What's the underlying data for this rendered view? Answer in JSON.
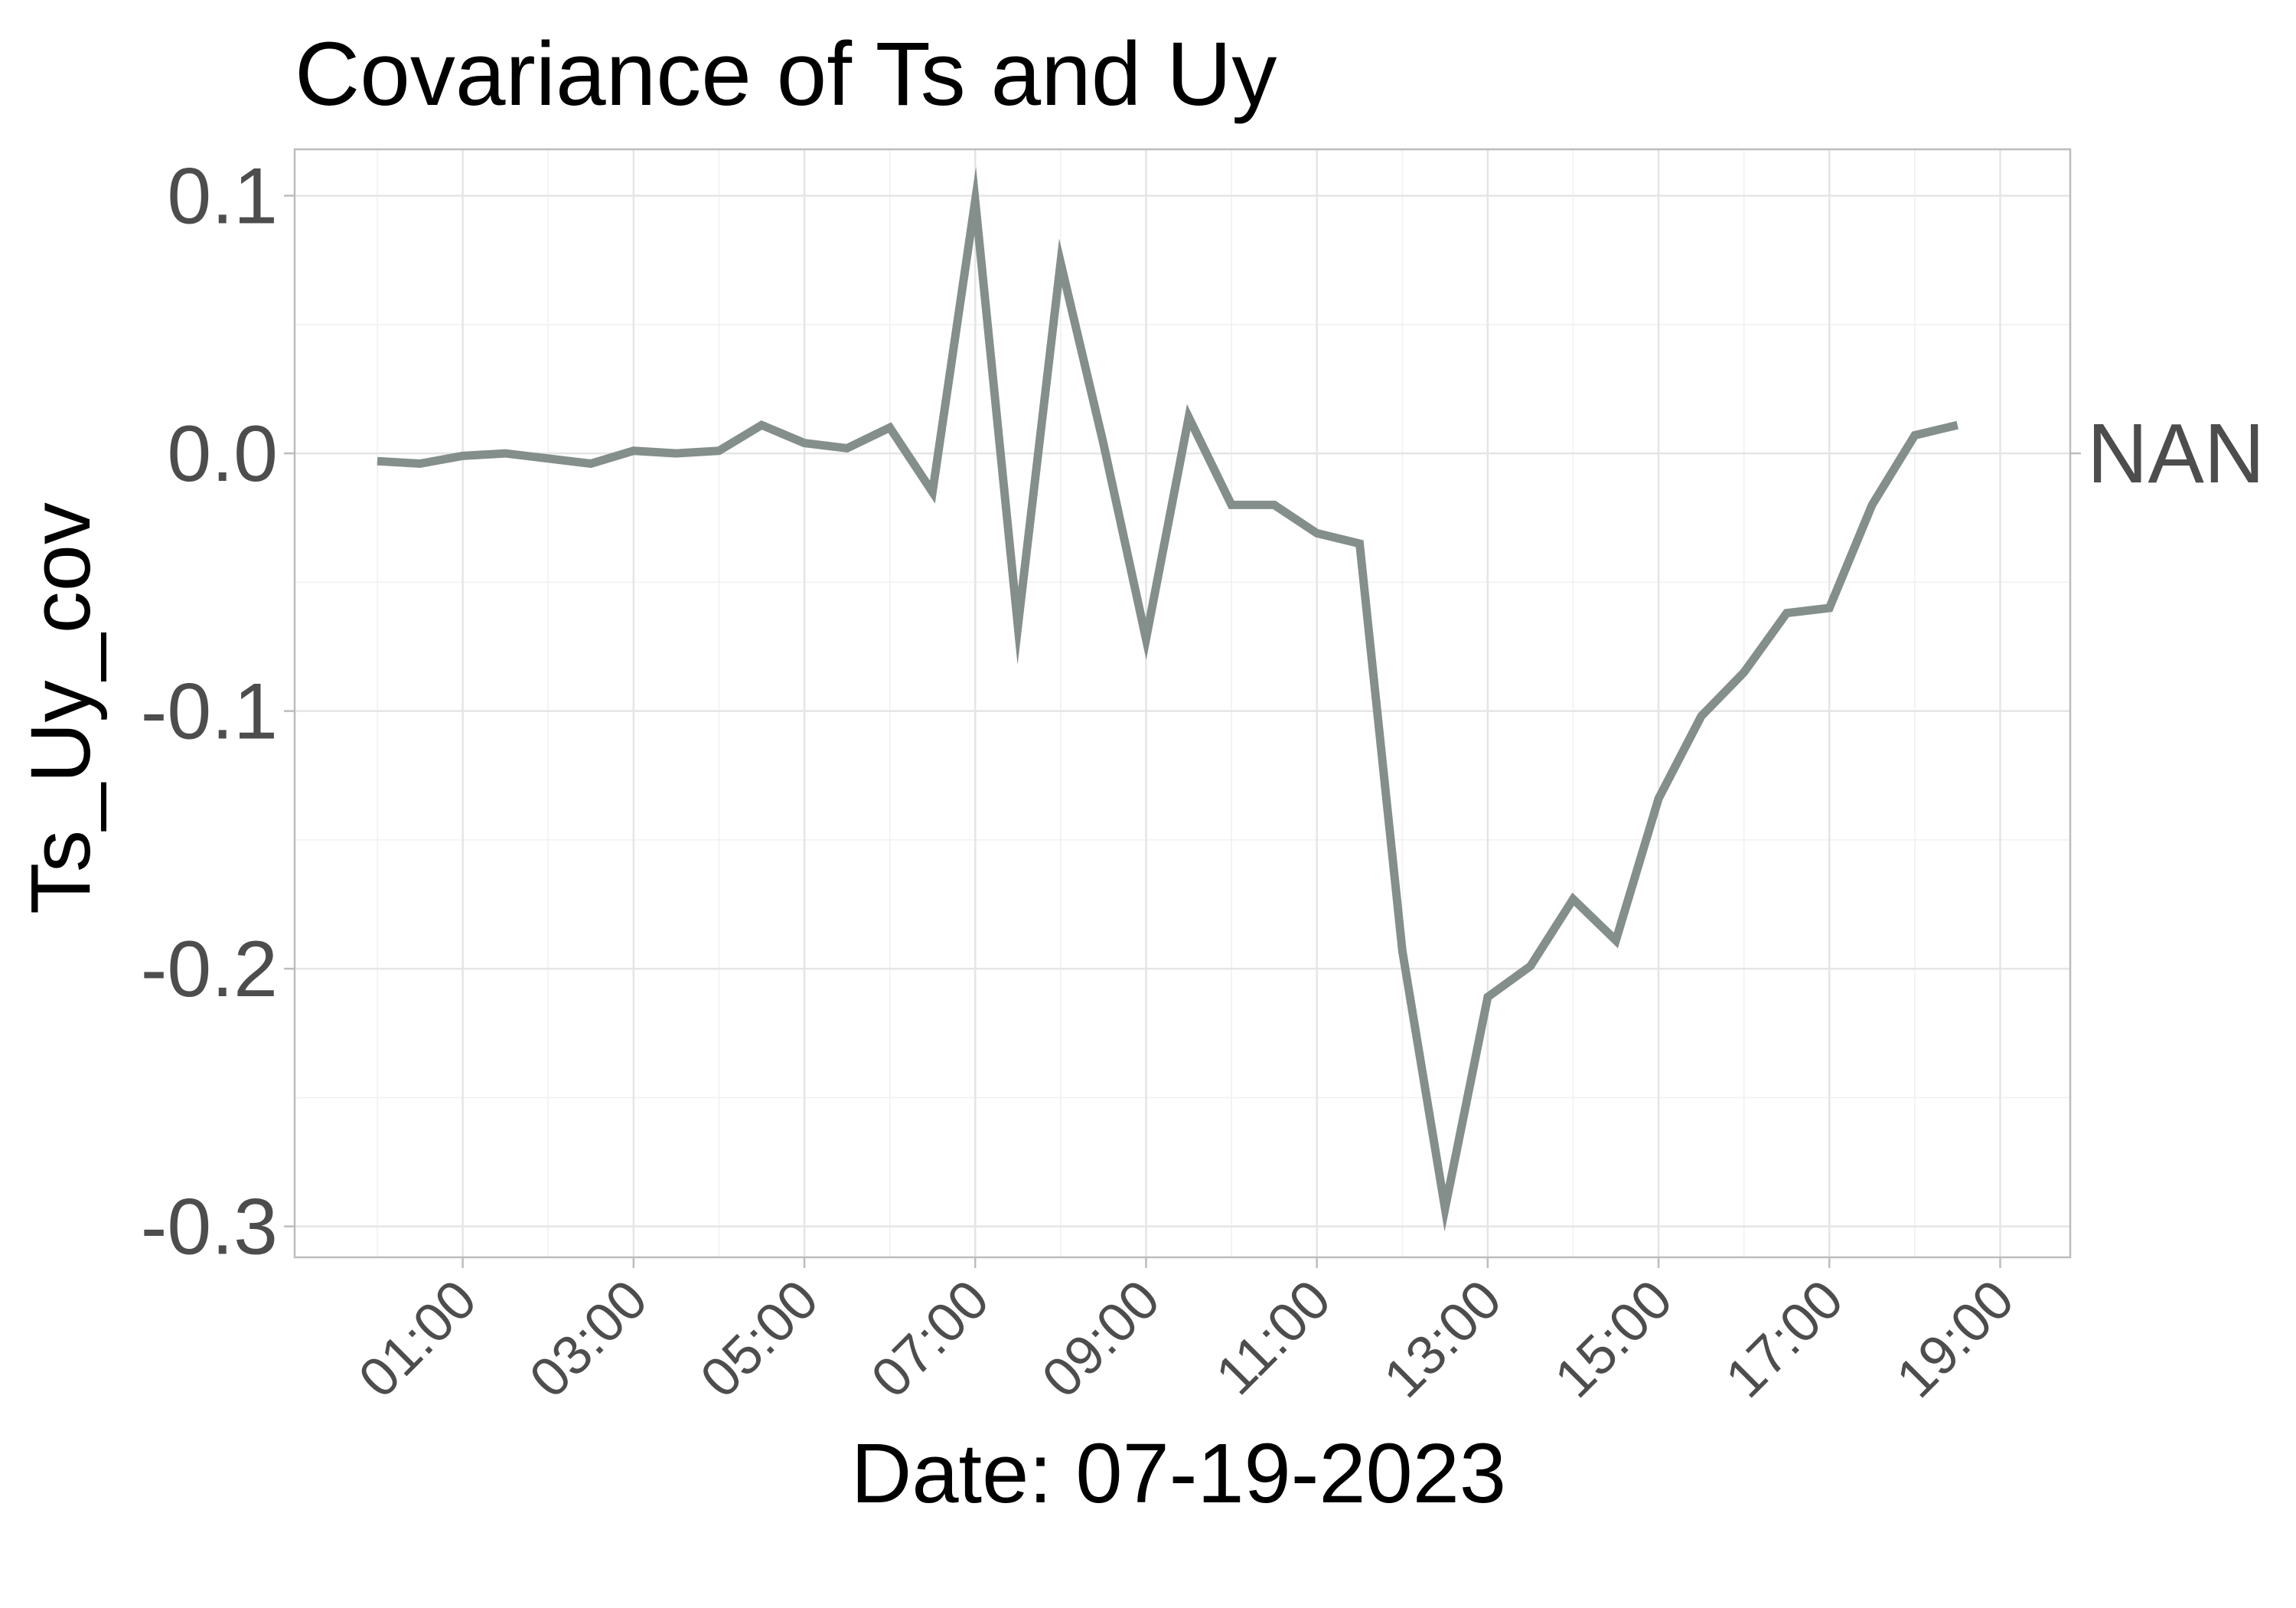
{
  "chart_data": {
    "type": "line",
    "title": "Covariance of Ts and Uy",
    "xlabel": "Date: 07-19-2023",
    "ylabel": "Ts_Uy_cov",
    "x_ticks": [
      "01:00",
      "03:00",
      "05:00",
      "07:00",
      "09:00",
      "11:00",
      "13:00",
      "15:00",
      "17:00",
      "19:00"
    ],
    "y_ticks": [
      "0.1",
      "0.0",
      "-0.1",
      "-0.2",
      "-0.3"
    ],
    "y_tick_values": [
      0.1,
      0.0,
      -0.1,
      -0.2,
      -0.3
    ],
    "xlim": [
      "00:00",
      "19:25"
    ],
    "ylim": [
      -0.312,
      0.118
    ],
    "grid": true,
    "line_color": "#848e8b",
    "series": [
      {
        "name": "NAN",
        "x": [
          "00:00",
          "00:30",
          "01:00",
          "01:30",
          "02:00",
          "02:30",
          "03:00",
          "03:30",
          "04:00",
          "04:30",
          "05:00",
          "05:30",
          "06:00",
          "06:30",
          "07:00",
          "07:30",
          "08:00",
          "08:30",
          "09:00",
          "09:30",
          "10:00",
          "10:30",
          "11:00",
          "11:30",
          "12:00",
          "12:30",
          "13:00",
          "13:30",
          "14:00",
          "14:30",
          "15:00",
          "15:30",
          "16:00",
          "16:30",
          "17:00",
          "17:30",
          "18:00",
          "18:30"
        ],
        "values": [
          -0.003,
          -0.004,
          -0.001,
          0.0,
          -0.002,
          -0.004,
          0.001,
          0.0,
          0.001,
          0.011,
          0.004,
          0.002,
          0.01,
          -0.015,
          0.098,
          -0.067,
          0.074,
          0.004,
          -0.072,
          0.014,
          -0.02,
          -0.02,
          -0.031,
          -0.035,
          -0.193,
          -0.293,
          -0.211,
          -0.199,
          -0.173,
          -0.189,
          -0.134,
          -0.102,
          -0.085,
          -0.062,
          -0.06,
          -0.02,
          0.007,
          0.011
        ]
      }
    ]
  }
}
